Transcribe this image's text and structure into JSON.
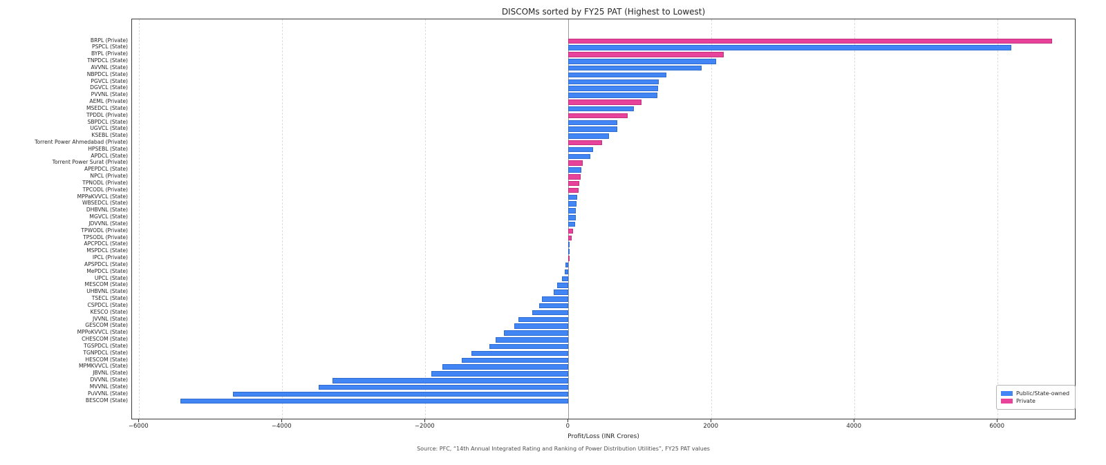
{
  "figure": {
    "title": "DISCOMs sorted by FY25 PAT (Highest to Lowest)",
    "xlabel": "Profit/Loss (INR Crores)",
    "source": "Source: PFC, “14th Annual Integrated Rating and Ranking of Power Distribution Utilities”, FY25 PAT values"
  },
  "legend": {
    "items": [
      {
        "label": "Public/State-owned",
        "color": "#4285f4"
      },
      {
        "label": "Private",
        "color": "#e8439a"
      }
    ]
  },
  "chart_data": {
    "type": "bar",
    "orientation": "horizontal",
    "title": "DISCOMs sorted by FY25 PAT (Highest to Lowest)",
    "xlabel": "Profit/Loss (INR Crores)",
    "ylabel": "",
    "xlim": [
      -6100,
      7100
    ],
    "xticks": [
      -6000,
      -4000,
      -2000,
      0,
      2000,
      4000,
      6000
    ],
    "grid": true,
    "legend_position": "lower right",
    "colors": {
      "state": "#4285f4",
      "private": "#e8439a"
    },
    "bars": [
      {
        "label": "BRPL (Private)",
        "type": "private",
        "value": 6760
      },
      {
        "label": "PSPCL (State)",
        "type": "state",
        "value": 6190
      },
      {
        "label": "BYPL (Private)",
        "type": "private",
        "value": 2170
      },
      {
        "label": "TNPDCL (State)",
        "type": "state",
        "value": 2065
      },
      {
        "label": "AVVNL (State)",
        "type": "state",
        "value": 1865
      },
      {
        "label": "NBPDCL (State)",
        "type": "state",
        "value": 1370
      },
      {
        "label": "PGVCL (State)",
        "type": "state",
        "value": 1260
      },
      {
        "label": "DGVCL (State)",
        "type": "state",
        "value": 1253
      },
      {
        "label": "PVVNL (State)",
        "type": "state",
        "value": 1246
      },
      {
        "label": "AEML (Private)",
        "type": "private",
        "value": 1020
      },
      {
        "label": "MSEDCL (State)",
        "type": "state",
        "value": 915
      },
      {
        "label": "TPDDL (Private)",
        "type": "private",
        "value": 830
      },
      {
        "label": "SBPDCL (State)",
        "type": "state",
        "value": 685
      },
      {
        "label": "UGVCL (State)",
        "type": "state",
        "value": 680
      },
      {
        "label": "KSEBL (State)",
        "type": "state",
        "value": 567
      },
      {
        "label": "Torrent Power Ahmedabad (Private)",
        "type": "private",
        "value": 467
      },
      {
        "label": "HPSEBL (State)",
        "type": "state",
        "value": 345
      },
      {
        "label": "APDCL (State)",
        "type": "state",
        "value": 302
      },
      {
        "label": "Torrent Power Surat (Private)",
        "type": "private",
        "value": 196
      },
      {
        "label": "APEPDCL (State)",
        "type": "state",
        "value": 177
      },
      {
        "label": "NPCL (Private)",
        "type": "private",
        "value": 167
      },
      {
        "label": "TPNODL (Private)",
        "type": "private",
        "value": 152
      },
      {
        "label": "TPCODL (Private)",
        "type": "private",
        "value": 145
      },
      {
        "label": "MPPaKVVCL (State)",
        "type": "state",
        "value": 120
      },
      {
        "label": "WBSEDCL (State)",
        "type": "state",
        "value": 110
      },
      {
        "label": "DHBVNL (State)",
        "type": "state",
        "value": 103
      },
      {
        "label": "MGVCL (State)",
        "type": "state",
        "value": 100
      },
      {
        "label": "JDVVNL (State)",
        "type": "state",
        "value": 94
      },
      {
        "label": "TPWODL (Private)",
        "type": "private",
        "value": 65
      },
      {
        "label": "TPSODL (Private)",
        "type": "private",
        "value": 45
      },
      {
        "label": "APCPDCL (State)",
        "type": "state",
        "value": 8
      },
      {
        "label": "MSPDCL (State)",
        "type": "state",
        "value": 4
      },
      {
        "label": "IPCL (Private)",
        "type": "private",
        "value": 1
      },
      {
        "label": "APSPDCL (State)",
        "type": "state",
        "value": -40
      },
      {
        "label": "MePDCL (State)",
        "type": "state",
        "value": -48
      },
      {
        "label": "UPCL (State)",
        "type": "state",
        "value": -90
      },
      {
        "label": "MESCOM (State)",
        "type": "state",
        "value": -155
      },
      {
        "label": "UHBVNL (State)",
        "type": "state",
        "value": -206
      },
      {
        "label": "TSECL (State)",
        "type": "state",
        "value": -374
      },
      {
        "label": "CSPDCL (State)",
        "type": "state",
        "value": -406
      },
      {
        "label": "KESCO (State)",
        "type": "state",
        "value": -502
      },
      {
        "label": "JVVNL (State)",
        "type": "state",
        "value": -696
      },
      {
        "label": "GESCOM (State)",
        "type": "state",
        "value": -760
      },
      {
        "label": "MPPoKVVCL (State)",
        "type": "state",
        "value": -905
      },
      {
        "label": "CHESCOM (State)",
        "type": "state",
        "value": -1020
      },
      {
        "label": "TGSPDCL (State)",
        "type": "state",
        "value": -1100
      },
      {
        "label": "TGNPDCL (State)",
        "type": "state",
        "value": -1353
      },
      {
        "label": "HESCOM (State)",
        "type": "state",
        "value": -1490
      },
      {
        "label": "MPMKVVCL (State)",
        "type": "state",
        "value": -1760
      },
      {
        "label": "JBVNL (State)",
        "type": "state",
        "value": -1915
      },
      {
        "label": "DVVNL (State)",
        "type": "state",
        "value": -3295
      },
      {
        "label": "MVVNL (State)",
        "type": "state",
        "value": -3490
      },
      {
        "label": "PuVVNL (State)",
        "type": "state",
        "value": -4690
      },
      {
        "label": "BESCOM (State)",
        "type": "state",
        "value": -5425
      }
    ]
  }
}
